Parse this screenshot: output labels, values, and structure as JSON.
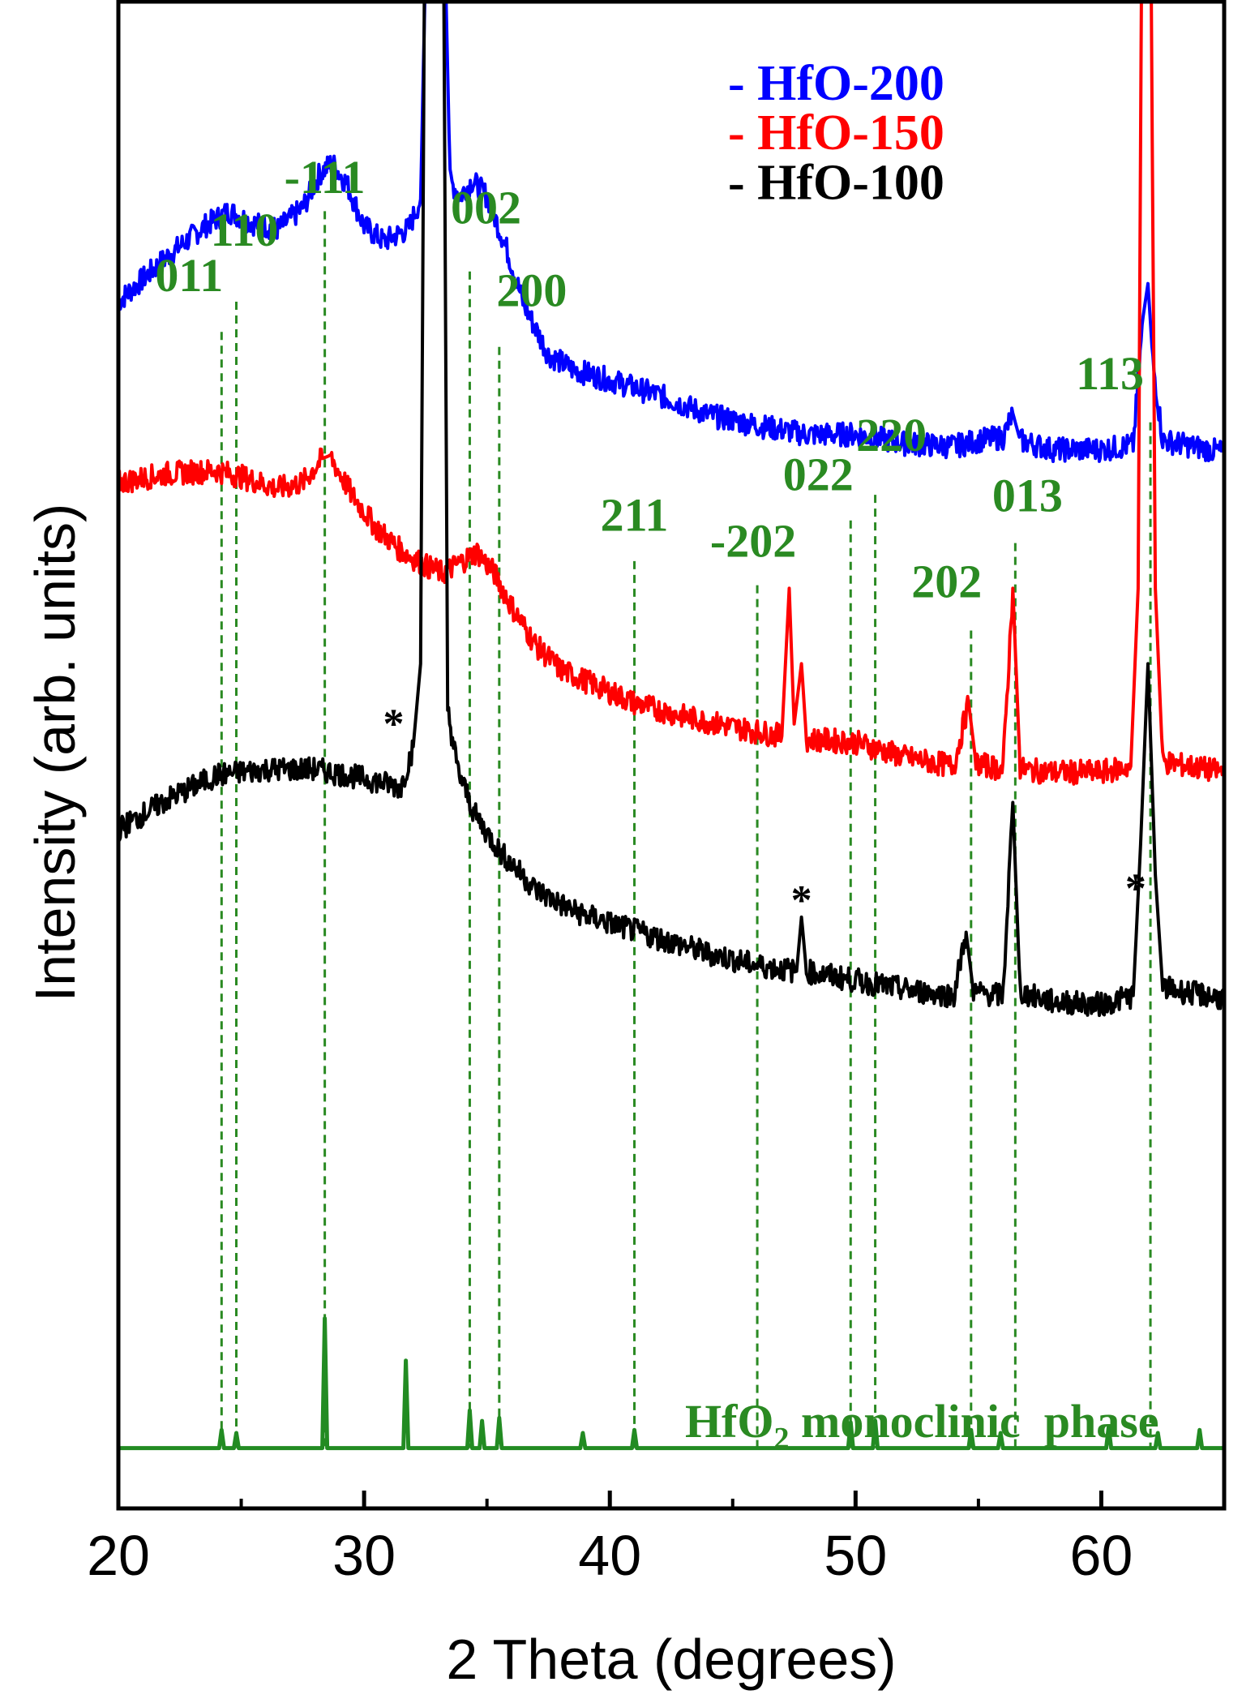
{
  "chart_data": {
    "type": "line",
    "xlabel": "2 Theta (degrees)",
    "ylabel": "Intensity (arb. units)",
    "xlim": [
      20,
      65
    ],
    "x_ticks": [
      "20",
      "30",
      "40",
      "50",
      "60"
    ],
    "y_ticks_labeled": false,
    "grid": false,
    "legend_position": "top-right",
    "legend": [
      "- HfO-200",
      "- HfO-150",
      "- HfO-100"
    ],
    "series": [
      {
        "name": "HfO-200",
        "color": "#0000ff",
        "points": [
          [
            20,
            0.8
          ],
          [
            22,
            0.83
          ],
          [
            23.5,
            0.85
          ],
          [
            24.5,
            0.86
          ],
          [
            25.5,
            0.852
          ],
          [
            26.5,
            0.848
          ],
          [
            27.5,
            0.862
          ],
          [
            28.2,
            0.885
          ],
          [
            28.7,
            0.892
          ],
          [
            29.3,
            0.878
          ],
          [
            30,
            0.85
          ],
          [
            30.8,
            0.84
          ],
          [
            31.8,
            0.848
          ],
          [
            32.3,
            0.868
          ],
          [
            32.6,
            1.1
          ],
          [
            32.9,
            1.15
          ],
          [
            33.2,
            1.1
          ],
          [
            33.5,
            0.88
          ],
          [
            33.9,
            0.87
          ],
          [
            34.4,
            0.88
          ],
          [
            35,
            0.87
          ],
          [
            35.8,
            0.835
          ],
          [
            36.5,
            0.798
          ],
          [
            37.5,
            0.765
          ],
          [
            38.5,
            0.755
          ],
          [
            40,
            0.748
          ],
          [
            42,
            0.738
          ],
          [
            44,
            0.725
          ],
          [
            46,
            0.718
          ],
          [
            48,
            0.712
          ],
          [
            50,
            0.712
          ],
          [
            52,
            0.706
          ],
          [
            54,
            0.704
          ],
          [
            55,
            0.708
          ],
          [
            56,
            0.71
          ],
          [
            56.4,
            0.726
          ],
          [
            56.7,
            0.708
          ],
          [
            58,
            0.702
          ],
          [
            60,
            0.702
          ],
          [
            61.3,
            0.705
          ],
          [
            61.7,
            0.79
          ],
          [
            61.9,
            0.812
          ],
          [
            62.1,
            0.76
          ],
          [
            62.5,
            0.708
          ],
          [
            65,
            0.7
          ]
        ]
      },
      {
        "name": "HfO-150",
        "color": "#ff0000",
        "points": [
          [
            20,
            0.68
          ],
          [
            22,
            0.686
          ],
          [
            24,
            0.688
          ],
          [
            25,
            0.684
          ],
          [
            26.5,
            0.676
          ],
          [
            27.5,
            0.68
          ],
          [
            28.3,
            0.696
          ],
          [
            28.6,
            0.698
          ],
          [
            29.5,
            0.672
          ],
          [
            30.5,
            0.65
          ],
          [
            31.5,
            0.635
          ],
          [
            32.5,
            0.625
          ],
          [
            33.2,
            0.62
          ],
          [
            34,
            0.628
          ],
          [
            34.6,
            0.634
          ],
          [
            35.3,
            0.62
          ],
          [
            36,
            0.598
          ],
          [
            37,
            0.572
          ],
          [
            38,
            0.556
          ],
          [
            39.5,
            0.545
          ],
          [
            41,
            0.534
          ],
          [
            43,
            0.525
          ],
          [
            45,
            0.518
          ],
          [
            47,
            0.512
          ],
          [
            47.3,
            0.61
          ],
          [
            47.5,
            0.52
          ],
          [
            47.8,
            0.56
          ],
          [
            48,
            0.51
          ],
          [
            50,
            0.508
          ],
          [
            52,
            0.498
          ],
          [
            54,
            0.492
          ],
          [
            54.6,
            0.534
          ],
          [
            54.9,
            0.494
          ],
          [
            56,
            0.49
          ],
          [
            56.4,
            0.61
          ],
          [
            56.7,
            0.49
          ],
          [
            58,
            0.488
          ],
          [
            60,
            0.488
          ],
          [
            61.2,
            0.492
          ],
          [
            61.5,
            0.61
          ],
          [
            61.7,
            1.2
          ],
          [
            61.95,
            1.2
          ],
          [
            62.2,
            0.61
          ],
          [
            62.5,
            0.495
          ],
          [
            65,
            0.488
          ]
        ]
      },
      {
        "name": "HfO-100",
        "color": "#000000",
        "points": [
          [
            20,
            0.45
          ],
          [
            22,
            0.47
          ],
          [
            24,
            0.486
          ],
          [
            26,
            0.49
          ],
          [
            28,
            0.49
          ],
          [
            30,
            0.484
          ],
          [
            31.5,
            0.478
          ],
          [
            32,
            0.505
          ],
          [
            32.3,
            0.56
          ],
          [
            32.5,
            1.15
          ],
          [
            33.2,
            1.15
          ],
          [
            33.4,
            0.53
          ],
          [
            33.8,
            0.49
          ],
          [
            34.5,
            0.46
          ],
          [
            35.5,
            0.436
          ],
          [
            37,
            0.41
          ],
          [
            38.5,
            0.396
          ],
          [
            40,
            0.388
          ],
          [
            42,
            0.378
          ],
          [
            44,
            0.368
          ],
          [
            46,
            0.36
          ],
          [
            47.6,
            0.356
          ],
          [
            47.8,
            0.392
          ],
          [
            48,
            0.356
          ],
          [
            50,
            0.35
          ],
          [
            52,
            0.344
          ],
          [
            54,
            0.34
          ],
          [
            54.5,
            0.382
          ],
          [
            54.8,
            0.342
          ],
          [
            56,
            0.34
          ],
          [
            56.4,
            0.468
          ],
          [
            56.7,
            0.342
          ],
          [
            58,
            0.336
          ],
          [
            60,
            0.334
          ],
          [
            61.3,
            0.34
          ],
          [
            61.6,
            0.44
          ],
          [
            61.9,
            0.56
          ],
          [
            62.2,
            0.42
          ],
          [
            62.5,
            0.345
          ],
          [
            65,
            0.338
          ]
        ]
      },
      {
        "name": "HfO2 monoclinic phase",
        "color": "#228b22",
        "points": [
          [
            20,
            0.04
          ],
          [
            24.1,
            0.04
          ],
          [
            24.2,
            0.052
          ],
          [
            24.3,
            0.04
          ],
          [
            24.7,
            0.04
          ],
          [
            24.8,
            0.05
          ],
          [
            24.9,
            0.04
          ],
          [
            28.3,
            0.04
          ],
          [
            28.4,
            0.126
          ],
          [
            28.5,
            0.04
          ],
          [
            31.6,
            0.04
          ],
          [
            31.7,
            0.098
          ],
          [
            31.8,
            0.04
          ],
          [
            34.2,
            0.04
          ],
          [
            34.3,
            0.065
          ],
          [
            34.4,
            0.04
          ],
          [
            34.7,
            0.04
          ],
          [
            34.8,
            0.058
          ],
          [
            34.9,
            0.04
          ],
          [
            35.4,
            0.04
          ],
          [
            35.5,
            0.06
          ],
          [
            35.6,
            0.04
          ],
          [
            38.8,
            0.04
          ],
          [
            38.9,
            0.05
          ],
          [
            39,
            0.04
          ],
          [
            40.9,
            0.04
          ],
          [
            41,
            0.052
          ],
          [
            41.1,
            0.04
          ],
          [
            49.7,
            0.04
          ],
          [
            49.8,
            0.057
          ],
          [
            49.9,
            0.04
          ],
          [
            50.7,
            0.04
          ],
          [
            50.8,
            0.058
          ],
          [
            50.9,
            0.04
          ],
          [
            54.6,
            0.04
          ],
          [
            54.7,
            0.052
          ],
          [
            54.8,
            0.04
          ],
          [
            55.8,
            0.04
          ],
          [
            55.9,
            0.05
          ],
          [
            56,
            0.04
          ],
          [
            60.2,
            0.04
          ],
          [
            60.3,
            0.054
          ],
          [
            60.4,
            0.04
          ],
          [
            62.2,
            0.04
          ],
          [
            62.3,
            0.05
          ],
          [
            62.4,
            0.04
          ],
          [
            63.9,
            0.04
          ],
          [
            64,
            0.052
          ],
          [
            64.1,
            0.04
          ],
          [
            65,
            0.04
          ]
        ]
      }
    ],
    "reference_peaks": [
      {
        "label": "011",
        "x": 24.2
      },
      {
        "label": "110",
        "x": 24.8
      },
      {
        "label": "-111",
        "x": 28.4
      },
      {
        "label": "002",
        "x": 34.3
      },
      {
        "label": "200",
        "x": 35.5
      },
      {
        "label": "211",
        "x": 41.0
      },
      {
        "label": "-202",
        "x": 46.0
      },
      {
        "label": "022",
        "x": 49.8
      },
      {
        "label": "220",
        "x": 50.8
      },
      {
        "label": "202",
        "x": 54.7
      },
      {
        "label": "013",
        "x": 56.5
      },
      {
        "label": "113",
        "x": 62.0
      }
    ],
    "annotations": [
      {
        "text": "*",
        "x": 31.2
      },
      {
        "text": "*",
        "x": 47.8
      },
      {
        "text": "*",
        "x": 61.4
      }
    ],
    "phase_label": {
      "main": "HfO",
      "sub": "2",
      "rest": " monoclinic  phase"
    }
  }
}
